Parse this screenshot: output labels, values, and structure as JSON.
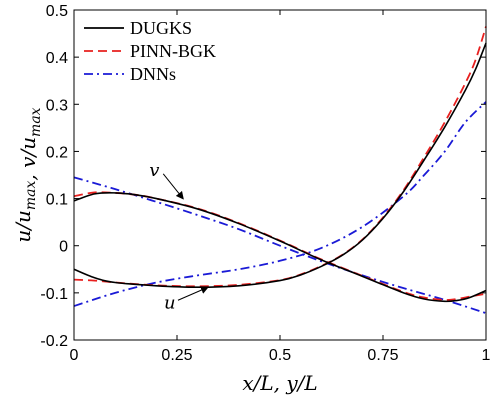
{
  "chart_data": {
    "type": "line",
    "xlabel": "x/L, y/L",
    "ylabel": "u/u_max, v/u_max",
    "xlim": [
      0,
      1
    ],
    "ylim": [
      -0.2,
      0.5
    ],
    "xticks": [
      "0",
      "0.25",
      "0.5",
      "0.75",
      "1"
    ],
    "yticks": [
      "-0.2",
      "-0.1",
      "0",
      "0.1",
      "0.2",
      "0.3",
      "0.4",
      "0.5"
    ],
    "grid": false,
    "legend_position": "top-left",
    "series": [
      {
        "name": "DUGKS",
        "group": "u",
        "color": "#000000",
        "dash": "solid",
        "x": [
          0,
          0.05,
          0.1,
          0.2,
          0.3,
          0.4,
          0.5,
          0.55,
          0.6,
          0.65,
          0.7,
          0.75,
          0.8,
          0.85,
          0.9,
          0.95,
          0.975,
          1.0
        ],
        "y": [
          -0.05,
          -0.068,
          -0.078,
          -0.085,
          -0.088,
          -0.085,
          -0.074,
          -0.062,
          -0.044,
          -0.021,
          0.012,
          0.058,
          0.115,
          0.182,
          0.252,
          0.33,
          0.375,
          0.43
        ]
      },
      {
        "name": "DUGKS",
        "group": "v",
        "color": "#000000",
        "dash": "solid",
        "x": [
          0,
          0.05,
          0.1,
          0.15,
          0.2,
          0.3,
          0.4,
          0.5,
          0.55,
          0.6,
          0.7,
          0.8,
          0.85,
          0.9,
          0.93,
          0.96,
          1.0
        ],
        "y": [
          0.095,
          0.11,
          0.112,
          0.108,
          0.1,
          0.078,
          0.047,
          0.01,
          -0.01,
          -0.03,
          -0.065,
          -0.1,
          -0.113,
          -0.118,
          -0.116,
          -0.11,
          -0.095
        ]
      },
      {
        "name": "PINN-BGK",
        "group": "u",
        "color": "#e8201f",
        "dash": "dashed",
        "x": [
          0,
          0.05,
          0.1,
          0.2,
          0.3,
          0.4,
          0.5,
          0.55,
          0.6,
          0.65,
          0.7,
          0.75,
          0.8,
          0.85,
          0.9,
          0.95,
          0.975,
          1.0
        ],
        "y": [
          -0.072,
          -0.074,
          -0.078,
          -0.084,
          -0.086,
          -0.083,
          -0.073,
          -0.061,
          -0.043,
          -0.02,
          0.013,
          0.06,
          0.118,
          0.188,
          0.262,
          0.345,
          0.395,
          0.465
        ]
      },
      {
        "name": "PINN-BGK",
        "group": "v",
        "color": "#e8201f",
        "dash": "dashed",
        "x": [
          0,
          0.05,
          0.1,
          0.15,
          0.2,
          0.3,
          0.4,
          0.5,
          0.55,
          0.6,
          0.7,
          0.8,
          0.85,
          0.9,
          0.93,
          0.96,
          1.0
        ],
        "y": [
          0.105,
          0.113,
          0.112,
          0.108,
          0.1,
          0.079,
          0.048,
          0.011,
          -0.009,
          -0.029,
          -0.064,
          -0.098,
          -0.11,
          -0.115,
          -0.113,
          -0.108,
          -0.102
        ]
      },
      {
        "name": "DNNs",
        "group": "u",
        "color": "#1a1ad6",
        "dash": "dashdot",
        "x": [
          0,
          0.1,
          0.2,
          0.3,
          0.4,
          0.5,
          0.6,
          0.7,
          0.8,
          0.85,
          0.9,
          0.95,
          1.0
        ],
        "y": [
          -0.128,
          -0.1,
          -0.078,
          -0.063,
          -0.05,
          -0.032,
          -0.005,
          0.04,
          0.105,
          0.15,
          0.2,
          0.262,
          0.305
        ]
      },
      {
        "name": "DNNs",
        "group": "v",
        "color": "#1a1ad6",
        "dash": "dashdot",
        "x": [
          0,
          0.1,
          0.2,
          0.3,
          0.4,
          0.5,
          0.6,
          0.7,
          0.8,
          0.9,
          1.0
        ],
        "y": [
          0.145,
          0.12,
          0.093,
          0.065,
          0.035,
          0.0,
          -0.033,
          -0.063,
          -0.09,
          -0.115,
          -0.143
        ]
      }
    ],
    "legend": [
      {
        "label": "DUGKS",
        "color": "#000000",
        "dash": "solid"
      },
      {
        "label": "PINN-BGK",
        "color": "#e8201f",
        "dash": "dashed"
      },
      {
        "label": "DNNs",
        "color": "#1a1ad6",
        "dash": "dashdot"
      }
    ],
    "annotations": [
      {
        "text": "v",
        "points_to": [
          0.27,
          0.093
        ]
      },
      {
        "text": "u",
        "points_to": [
          0.33,
          -0.086
        ]
      }
    ]
  }
}
